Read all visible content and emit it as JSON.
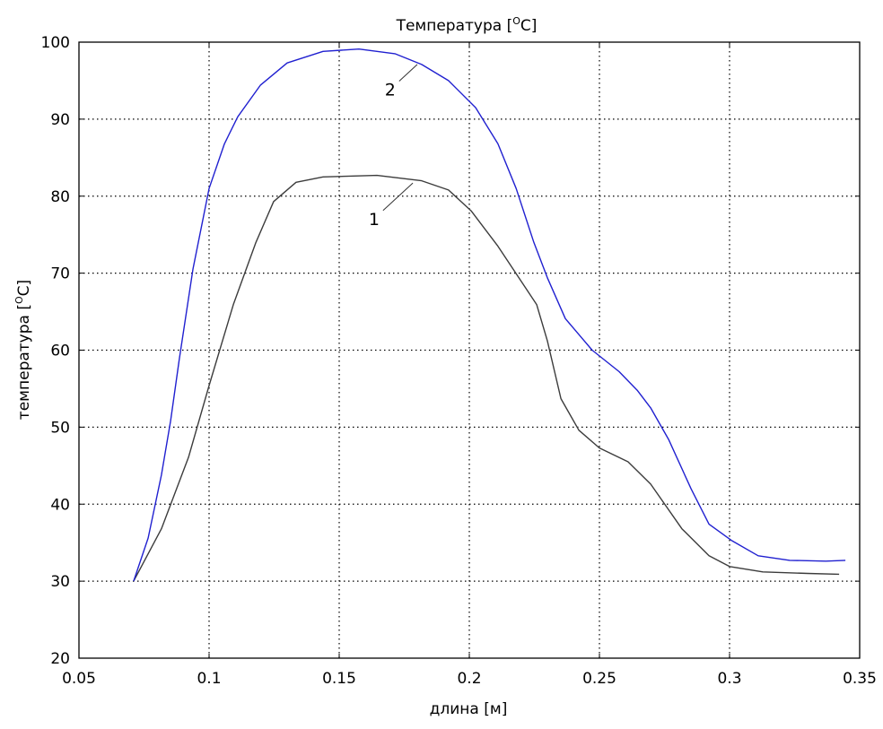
{
  "chart_data": {
    "type": "line",
    "title": "Температура [",
    "title_sup": "O",
    "title_tail": "C]",
    "xlabel": "длина [м]",
    "ylabel": "температура [",
    "ylabel_sup": "O",
    "ylabel_tail": "C]",
    "xlim": [
      0.05,
      0.35
    ],
    "ylim": [
      20,
      100
    ],
    "xticks": [
      0.05,
      0.1,
      0.15,
      0.2,
      0.25,
      0.3,
      0.35
    ],
    "xtick_labels": [
      "0.05",
      "0.1",
      "0.15",
      "0.2",
      "0.25",
      "0.3",
      "0.35"
    ],
    "yticks": [
      20,
      30,
      40,
      50,
      60,
      70,
      80,
      90,
      100
    ],
    "ytick_labels": [
      "20",
      "30",
      "40",
      "50",
      "60",
      "70",
      "80",
      "90",
      "100"
    ],
    "grid": true,
    "series": [
      {
        "name": "1",
        "color": "#3c3c3c",
        "x": [
          0.071,
          0.0817,
          0.0921,
          0.1,
          0.1093,
          0.118,
          0.1248,
          0.1334,
          0.1438,
          0.1645,
          0.1817,
          0.192,
          0.2007,
          0.211,
          0.2214,
          0.2259,
          0.23,
          0.2352,
          0.2421,
          0.25,
          0.261,
          0.2697,
          0.2817,
          0.2921,
          0.3,
          0.3128,
          0.33,
          0.3421
        ],
        "y": [
          30,
          36.8,
          46.1,
          55.4,
          65.9,
          74,
          79.3,
          81.8,
          82.5,
          82.7,
          82,
          80.8,
          78.1,
          73.5,
          68.2,
          65.9,
          61.2,
          53.7,
          49.6,
          47.3,
          45.5,
          42.6,
          36.8,
          33.3,
          31.9,
          31.2,
          31,
          30.9
        ],
        "label_at": [
          0.1634,
          77.2
        ],
        "leader_to": [
          0.1783,
          81.7
        ]
      },
      {
        "name": "2",
        "color": "#2020d0",
        "x": [
          0.071,
          0.0766,
          0.0817,
          0.0852,
          0.0886,
          0.0938,
          0.1,
          0.1059,
          0.111,
          0.1197,
          0.13,
          0.1438,
          0.1576,
          0.1714,
          0.1817,
          0.192,
          0.2024,
          0.211,
          0.218,
          0.2248,
          0.23,
          0.2369,
          0.2472,
          0.2576,
          0.2645,
          0.2697,
          0.2766,
          0.2852,
          0.2921,
          0.3007,
          0.311,
          0.3231,
          0.337,
          0.3445
        ],
        "y": [
          30,
          35.6,
          43.8,
          50.8,
          58.9,
          70.5,
          81,
          86.8,
          90.3,
          94.4,
          97.3,
          98.8,
          99.1,
          98.5,
          97.1,
          95,
          91.5,
          86.8,
          81,
          74,
          69.4,
          64.1,
          60,
          57.2,
          54.8,
          52.5,
          48.4,
          42,
          37.4,
          35.3,
          33.3,
          32.7,
          32.6,
          32.7
        ],
        "label_at": [
          0.1696,
          94.0
        ],
        "leader_to": [
          0.18,
          97.1
        ]
      }
    ]
  }
}
